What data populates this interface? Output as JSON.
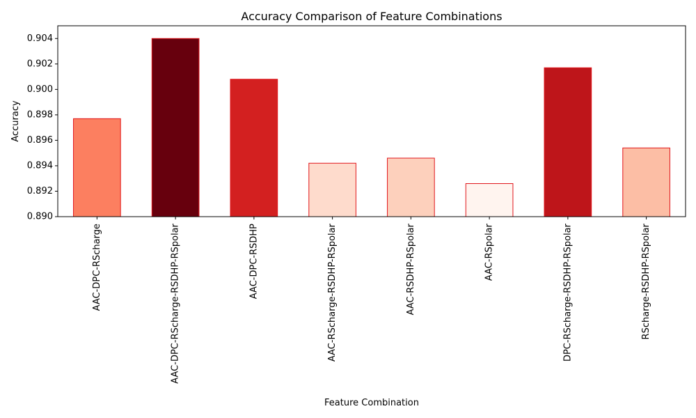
{
  "chart_data": {
    "type": "bar",
    "title": "Accuracy Comparison of Feature Combinations",
    "xlabel": "Feature Combination",
    "ylabel": "Accuracy",
    "ylim": [
      0.89,
      0.905
    ],
    "yticks": [
      0.89,
      0.892,
      0.894,
      0.896,
      0.898,
      0.9,
      0.902,
      0.904
    ],
    "ytick_labels": [
      "0.890",
      "0.892",
      "0.894",
      "0.896",
      "0.898",
      "0.900",
      "0.902",
      "0.904"
    ],
    "categories": [
      "AAC-DPC-RScharge",
      "AAC-DPC-RScharge-RSDHP-RSpolar",
      "AAC-DPC-RSDHP",
      "AAC-RScharge-RSDHP-RSpolar",
      "AAC-RSDHP-RSpolar",
      "AAC-RSpolar",
      "DPC-RScharge-RSDHP-RSpolar",
      "RScharge-RSDHP-RSpolar"
    ],
    "values": [
      0.8977,
      0.904,
      0.9008,
      0.8942,
      0.8946,
      0.8926,
      0.9017,
      0.8954
    ],
    "bar_colors": [
      "#fc7f60",
      "#67000d",
      "#d32020",
      "#fedbcc",
      "#fdd0bc",
      "#fff4ef",
      "#be151a",
      "#fcbea5"
    ],
    "bar_edge_color": "#e0141a",
    "grid": false,
    "legend": "none"
  }
}
